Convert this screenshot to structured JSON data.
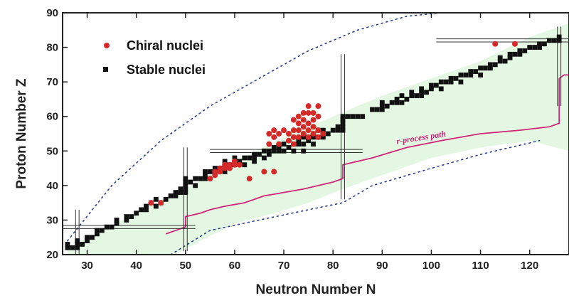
{
  "chart_data": {
    "type": "scatter",
    "xlabel": "Neutron Number N",
    "ylabel": "Proton Number Z",
    "xlim": [
      25,
      128
    ],
    "ylim": [
      20,
      90
    ],
    "xticks": [
      30,
      40,
      50,
      60,
      70,
      80,
      90,
      100,
      110,
      120
    ],
    "yticks": [
      20,
      30,
      40,
      50,
      60,
      70,
      80,
      90
    ],
    "grid": false,
    "legend_position": "top-left",
    "colors": {
      "chiral": "#d42a2a",
      "stable": "#111111",
      "band": "#e3f7e2",
      "rprocess": "#d1257a",
      "dotted": "#2b3f91"
    },
    "magic_numbers": {
      "neutron": [
        28,
        50,
        82,
        126
      ],
      "proton": [
        28,
        50,
        82
      ]
    },
    "annotation": {
      "text": "r-process path",
      "x": 93,
      "y": 52
    },
    "series": [
      {
        "name": "Chiral nuclei",
        "points": [
          [
            43,
            35
          ],
          [
            45,
            35
          ],
          [
            55,
            42
          ],
          [
            56,
            43
          ],
          [
            56,
            44
          ],
          [
            57,
            44
          ],
          [
            57,
            45
          ],
          [
            58,
            45
          ],
          [
            58,
            46
          ],
          [
            59,
            45
          ],
          [
            59,
            46
          ],
          [
            60,
            46
          ],
          [
            60,
            47
          ],
          [
            61,
            46
          ],
          [
            63,
            42
          ],
          [
            66,
            44
          ],
          [
            68,
            44
          ],
          [
            67,
            52
          ],
          [
            67,
            55
          ],
          [
            68,
            54
          ],
          [
            68,
            56
          ],
          [
            69,
            52
          ],
          [
            69,
            55
          ],
          [
            70,
            56
          ],
          [
            71,
            53
          ],
          [
            71,
            55
          ],
          [
            72,
            52
          ],
          [
            72,
            54
          ],
          [
            72,
            56
          ],
          [
            72,
            59
          ],
          [
            73,
            54
          ],
          [
            73,
            56
          ],
          [
            73,
            58
          ],
          [
            73,
            60
          ],
          [
            74,
            55
          ],
          [
            74,
            57
          ],
          [
            74,
            59
          ],
          [
            74,
            61
          ],
          [
            75,
            54
          ],
          [
            75,
            56
          ],
          [
            75,
            58
          ],
          [
            75,
            61
          ],
          [
            75,
            63
          ],
          [
            76,
            55
          ],
          [
            76,
            57
          ],
          [
            76,
            59
          ],
          [
            76,
            61
          ],
          [
            77,
            54
          ],
          [
            77,
            56
          ],
          [
            77,
            60
          ],
          [
            77,
            63
          ],
          [
            78,
            55
          ],
          [
            113,
            81
          ],
          [
            117,
            81
          ]
        ]
      },
      {
        "name": "Stable nuclei",
        "points": [
          [
            26,
            22
          ],
          [
            26,
            23
          ],
          [
            27,
            22
          ],
          [
            28,
            22
          ],
          [
            28,
            23
          ],
          [
            28,
            24
          ],
          [
            29,
            23
          ],
          [
            30,
            24
          ],
          [
            30,
            25
          ],
          [
            31,
            25
          ],
          [
            32,
            26
          ],
          [
            32,
            27
          ],
          [
            33,
            27
          ],
          [
            34,
            28
          ],
          [
            35,
            28
          ],
          [
            36,
            29
          ],
          [
            36,
            30
          ],
          [
            38,
            30
          ],
          [
            38,
            31
          ],
          [
            39,
            31
          ],
          [
            40,
            32
          ],
          [
            41,
            33
          ],
          [
            42,
            33
          ],
          [
            42,
            34
          ],
          [
            43,
            35
          ],
          [
            44,
            34
          ],
          [
            44,
            36
          ],
          [
            45,
            35
          ],
          [
            46,
            36
          ],
          [
            47,
            37
          ],
          [
            48,
            37
          ],
          [
            48,
            38
          ],
          [
            49,
            38
          ],
          [
            49,
            39
          ],
          [
            50,
            38
          ],
          [
            50,
            39
          ],
          [
            50,
            40
          ],
          [
            50,
            41
          ],
          [
            50,
            42
          ],
          [
            51,
            41
          ],
          [
            52,
            40
          ],
          [
            52,
            42
          ],
          [
            53,
            42
          ],
          [
            54,
            42
          ],
          [
            54,
            43
          ],
          [
            54,
            44
          ],
          [
            55,
            44
          ],
          [
            56,
            44
          ],
          [
            56,
            45
          ],
          [
            57,
            45
          ],
          [
            58,
            44
          ],
          [
            58,
            46
          ],
          [
            58,
            47
          ],
          [
            59,
            46
          ],
          [
            60,
            46
          ],
          [
            60,
            47
          ],
          [
            60,
            48
          ],
          [
            61,
            47
          ],
          [
            62,
            46
          ],
          [
            62,
            48
          ],
          [
            63,
            48
          ],
          [
            64,
            47
          ],
          [
            64,
            48
          ],
          [
            64,
            49
          ],
          [
            65,
            49
          ],
          [
            66,
            48
          ],
          [
            66,
            50
          ],
          [
            67,
            49
          ],
          [
            67,
            50
          ],
          [
            68,
            50
          ],
          [
            68,
            51
          ],
          [
            69,
            50
          ],
          [
            69,
            51
          ],
          [
            70,
            50
          ],
          [
            70,
            52
          ],
          [
            71,
            51
          ],
          [
            72,
            50
          ],
          [
            72,
            52
          ],
          [
            73,
            52
          ],
          [
            73,
            53
          ],
          [
            74,
            50
          ],
          [
            74,
            52
          ],
          [
            74,
            54
          ],
          [
            75,
            53
          ],
          [
            75,
            54
          ],
          [
            76,
            52
          ],
          [
            76,
            54
          ],
          [
            76,
            55
          ],
          [
            77,
            54
          ],
          [
            77,
            56
          ],
          [
            78,
            54
          ],
          [
            78,
            56
          ],
          [
            79,
            55
          ],
          [
            80,
            56
          ],
          [
            81,
            56
          ],
          [
            81,
            57
          ],
          [
            82,
            56
          ],
          [
            82,
            57
          ],
          [
            82,
            58
          ],
          [
            82,
            59
          ],
          [
            82,
            60
          ],
          [
            83,
            60
          ],
          [
            84,
            60
          ],
          [
            85,
            60
          ],
          [
            86,
            60
          ],
          [
            88,
            62
          ],
          [
            89,
            62
          ],
          [
            90,
            62
          ],
          [
            90,
            63
          ],
          [
            90,
            64
          ],
          [
            91,
            63
          ],
          [
            92,
            64
          ],
          [
            93,
            64
          ],
          [
            93,
            65
          ],
          [
            94,
            64
          ],
          [
            94,
            66
          ],
          [
            95,
            65
          ],
          [
            96,
            66
          ],
          [
            96,
            67
          ],
          [
            97,
            66
          ],
          [
            98,
            66
          ],
          [
            98,
            67
          ],
          [
            98,
            68
          ],
          [
            99,
            67
          ],
          [
            100,
            68
          ],
          [
            100,
            69
          ],
          [
            101,
            69
          ],
          [
            102,
            68
          ],
          [
            102,
            70
          ],
          [
            103,
            70
          ],
          [
            104,
            70
          ],
          [
            104,
            71
          ],
          [
            105,
            71
          ],
          [
            106,
            70
          ],
          [
            106,
            72
          ],
          [
            107,
            72
          ],
          [
            108,
            72
          ],
          [
            108,
            73
          ],
          [
            109,
            73
          ],
          [
            110,
            72
          ],
          [
            110,
            74
          ],
          [
            111,
            74
          ],
          [
            112,
            74
          ],
          [
            112,
            75
          ],
          [
            113,
            75
          ],
          [
            114,
            76
          ],
          [
            114,
            77
          ],
          [
            115,
            76
          ],
          [
            116,
            78
          ],
          [
            116,
            77
          ],
          [
            117,
            78
          ],
          [
            118,
            78
          ],
          [
            118,
            79
          ],
          [
            119,
            79
          ],
          [
            120,
            80
          ],
          [
            121,
            80
          ],
          [
            122,
            80
          ],
          [
            122,
            81
          ],
          [
            123,
            81
          ],
          [
            124,
            82
          ],
          [
            125,
            82
          ],
          [
            126,
            82
          ],
          [
            126,
            83
          ]
        ]
      }
    ]
  }
}
